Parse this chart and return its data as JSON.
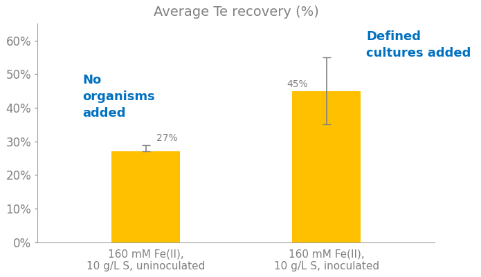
{
  "title": "Average Te recovery (%)",
  "categories": [
    "160 mM Fe(II),\n10 g/L S, uninoculated",
    "160 mM Fe(II),\n10 g/L S, inoculated"
  ],
  "values": [
    0.27,
    0.45
  ],
  "errors": [
    0.02,
    0.1
  ],
  "bar_color": "#FFC000",
  "bar_width": 0.38,
  "ylim": [
    0,
    0.65
  ],
  "yticks": [
    0.0,
    0.1,
    0.2,
    0.3,
    0.4,
    0.5,
    0.6
  ],
  "ytick_labels": [
    "0%",
    "10%",
    "20%",
    "30%",
    "40%",
    "50%",
    "60%"
  ],
  "title_color": "#808080",
  "title_fontsize": 14,
  "tick_label_color": "#808080",
  "tick_fontsize": 12,
  "xticklabel_fontsize": 11,
  "xticklabel_color": "#808080",
  "annotation_color": "#808080",
  "annotation_fontsize": 10,
  "label1_text": "No\norganisms\nadded",
  "label1_color": "#0070C0",
  "label1_fontsize": 13,
  "label2_text": "Defined\ncultures added",
  "label2_color": "#0070C0",
  "label2_fontsize": 13,
  "background_color": "#FFFFFF",
  "error_color": "#808080",
  "error_capsize": 4,
  "error_linewidth": 1.2,
  "spine_color": "#A0A0A0"
}
